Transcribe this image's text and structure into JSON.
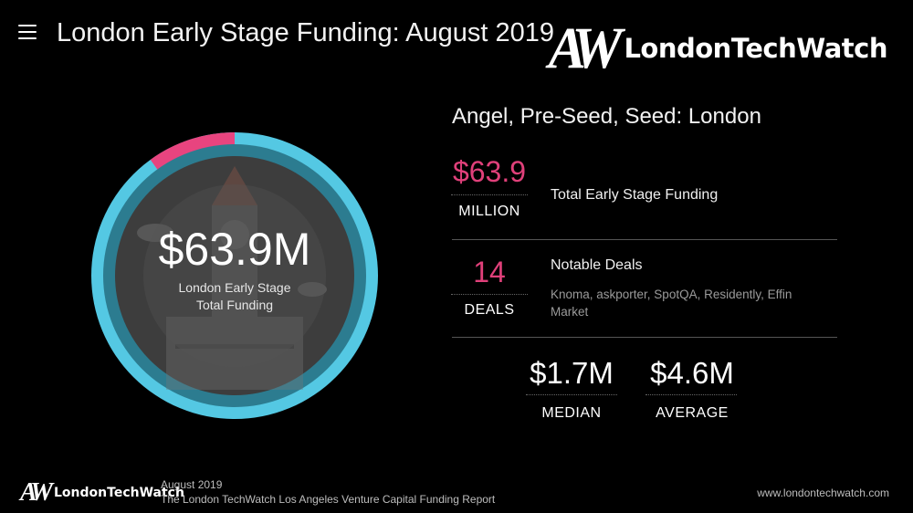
{
  "header": {
    "title": "London Early Stage Funding: August 2019",
    "brand_mono": "AW",
    "brand_name": "LondonTechWatch"
  },
  "donut": {
    "value": "$63.9M",
    "label_line1": "London Early Stage",
    "label_line2": "Total Funding",
    "highlight_fraction": 0.1,
    "ring_color": "#54c8e3",
    "highlight_color": "#e8447f",
    "inner_color": "#444444"
  },
  "stats": {
    "section_title": "Angel, Pre-Seed, Seed: London",
    "total_value": "$63.9",
    "total_unit": "MILLION",
    "total_desc": "Total Early Stage Funding",
    "deals_value": "14",
    "deals_unit": "DEALS",
    "deals_desc": "Notable Deals",
    "deals_list": "Knoma, askporter, SpotQA, Residently, Effin Market",
    "median_value": "$1.7M",
    "median_unit": "MEDIAN",
    "average_value": "$4.6M",
    "average_unit": "AVERAGE"
  },
  "footer": {
    "brand_mono": "AW",
    "brand_name": "LondonTechWatch",
    "date": "August 2019",
    "report": "The London TechWatch Los Angeles Venture Capital Funding Report",
    "url": "www.londontechwatch.com"
  },
  "colors": {
    "accent_pink": "#e0407a",
    "ring_blue": "#54c8e3"
  }
}
